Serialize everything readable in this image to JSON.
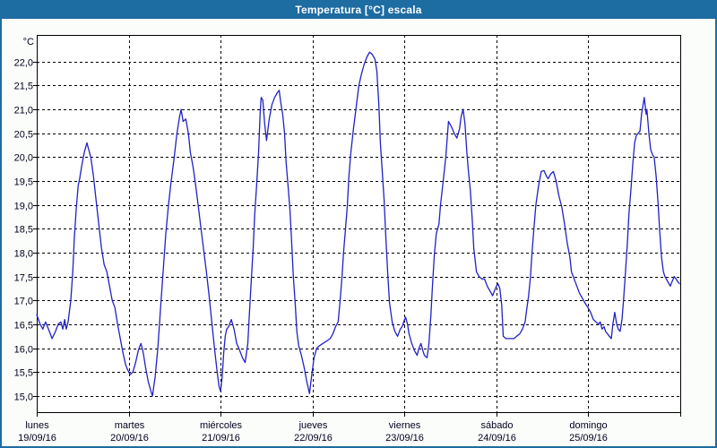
{
  "window": {
    "title": "Temperatura [°C] escala"
  },
  "colors": {
    "titlebar_bg": "#1d6ca2",
    "page_border": "#1d6ca2",
    "line": "#2121c8",
    "grid": "#000000",
    "label": "#00001e",
    "plot_bg": "#ffffff"
  },
  "chart_data": {
    "type": "line",
    "title": "Temperatura [°C] escala",
    "y_unit_label": "°C",
    "ylabel": "",
    "xlabel": "",
    "grid": "dashed",
    "legend": "none",
    "ylim": [
      14.66,
      22.56
    ],
    "x_hours_range": [
      0,
      168
    ],
    "hours_per_day": 24,
    "y_ticks": [
      {
        "value": 22.0,
        "label": "22,0"
      },
      {
        "value": 21.5,
        "label": "21,5"
      },
      {
        "value": 21.0,
        "label": "21,0"
      },
      {
        "value": 20.5,
        "label": "20,5"
      },
      {
        "value": 20.0,
        "label": "20,0"
      },
      {
        "value": 19.5,
        "label": "19,5"
      },
      {
        "value": 19.0,
        "label": "19,0"
      },
      {
        "value": 18.5,
        "label": "18,5"
      },
      {
        "value": 18.0,
        "label": "18,0"
      },
      {
        "value": 17.5,
        "label": "17,5"
      },
      {
        "value": 17.0,
        "label": "17,0"
      },
      {
        "value": 16.5,
        "label": "16,5"
      },
      {
        "value": 16.0,
        "label": "16,0"
      },
      {
        "value": 15.5,
        "label": "15,5"
      },
      {
        "value": 15.0,
        "label": "15,0"
      }
    ],
    "x_days": [
      {
        "name": "lunes",
        "date": "19/09/16"
      },
      {
        "name": "martes",
        "date": "20/09/16"
      },
      {
        "name": "miércoles",
        "date": "21/09/16"
      },
      {
        "name": "jueves",
        "date": "22/09/16"
      },
      {
        "name": "viernes",
        "date": "23/09/16"
      },
      {
        "name": "sábado",
        "date": "24/09/16"
      },
      {
        "name": "domingo",
        "date": "25/09/16"
      }
    ],
    "series": [
      {
        "name": "Temperatura [°C]",
        "color": "#2121c8",
        "points": [
          [
            0,
            16.7
          ],
          [
            0.9,
            16.5
          ],
          [
            1.6,
            16.4
          ],
          [
            2.3,
            16.55
          ],
          [
            3.3,
            16.35
          ],
          [
            4,
            16.2
          ],
          [
            4.9,
            16.35
          ],
          [
            5.6,
            16.5
          ],
          [
            6.3,
            16.55
          ],
          [
            6.8,
            16.4
          ],
          [
            7.3,
            16.6
          ],
          [
            7.7,
            16.4
          ],
          [
            8.2,
            16.55
          ],
          [
            8.9,
            17.0
          ],
          [
            9.4,
            17.6
          ],
          [
            9.8,
            18.3
          ],
          [
            10.3,
            18.9
          ],
          [
            10.8,
            19.4
          ],
          [
            11.2,
            19.55
          ],
          [
            11.7,
            19.8
          ],
          [
            12.4,
            20.1
          ],
          [
            13.1,
            20.3
          ],
          [
            13.6,
            20.15
          ],
          [
            14.1,
            20.0
          ],
          [
            14.8,
            19.6
          ],
          [
            15.5,
            19.1
          ],
          [
            16.2,
            18.6
          ],
          [
            16.9,
            18.1
          ],
          [
            17.6,
            17.75
          ],
          [
            18.3,
            17.6
          ],
          [
            19,
            17.3
          ],
          [
            19.7,
            17.0
          ],
          [
            20.4,
            16.85
          ],
          [
            21.1,
            16.5
          ],
          [
            21.8,
            16.2
          ],
          [
            22.5,
            15.9
          ],
          [
            23.2,
            15.65
          ],
          [
            23.7,
            15.55
          ],
          [
            24.4,
            15.45
          ],
          [
            25.1,
            15.5
          ],
          [
            25.8,
            15.7
          ],
          [
            26.5,
            15.95
          ],
          [
            27.2,
            16.1
          ],
          [
            27.7,
            15.95
          ],
          [
            28.4,
            15.6
          ],
          [
            29.1,
            15.3
          ],
          [
            29.8,
            15.1
          ],
          [
            30.2,
            15.0
          ],
          [
            30.9,
            15.4
          ],
          [
            31.6,
            16.0
          ],
          [
            32.3,
            16.8
          ],
          [
            33,
            17.6
          ],
          [
            33.7,
            18.4
          ],
          [
            34.4,
            19.0
          ],
          [
            35.1,
            19.5
          ],
          [
            35.9,
            20.0
          ],
          [
            36.6,
            20.5
          ],
          [
            37.3,
            20.85
          ],
          [
            37.7,
            21.0
          ],
          [
            38.2,
            20.75
          ],
          [
            38.9,
            20.8
          ],
          [
            39.6,
            20.5
          ],
          [
            40.1,
            20.1
          ],
          [
            40.8,
            19.8
          ],
          [
            41.5,
            19.4
          ],
          [
            42.2,
            18.95
          ],
          [
            42.9,
            18.5
          ],
          [
            43.6,
            18.05
          ],
          [
            44.3,
            17.6
          ],
          [
            45,
            17.1
          ],
          [
            45.7,
            16.55
          ],
          [
            46.4,
            16.0
          ],
          [
            47.1,
            15.5
          ],
          [
            47.6,
            15.2
          ],
          [
            48,
            15.1
          ],
          [
            48.4,
            15.4
          ],
          [
            48.8,
            15.9
          ],
          [
            49.2,
            16.25
          ],
          [
            49.6,
            16.4
          ],
          [
            50.1,
            16.45
          ],
          [
            50.8,
            16.6
          ],
          [
            51.5,
            16.4
          ],
          [
            52.2,
            16.1
          ],
          [
            53,
            15.95
          ],
          [
            53.7,
            15.8
          ],
          [
            54.4,
            15.7
          ],
          [
            55.1,
            16.1
          ],
          [
            55.5,
            16.7
          ],
          [
            56,
            17.4
          ],
          [
            56.5,
            18.1
          ],
          [
            56.9,
            18.8
          ],
          [
            57.4,
            19.4
          ],
          [
            57.9,
            20.1
          ],
          [
            58.3,
            20.9
          ],
          [
            58.6,
            21.25
          ],
          [
            59,
            21.2
          ],
          [
            59.5,
            20.7
          ],
          [
            60,
            20.35
          ],
          [
            60.7,
            20.8
          ],
          [
            61.4,
            21.1
          ],
          [
            62.1,
            21.25
          ],
          [
            62.8,
            21.35
          ],
          [
            63.3,
            21.4
          ],
          [
            63.7,
            21.15
          ],
          [
            64.2,
            20.9
          ],
          [
            64.7,
            20.5
          ],
          [
            65.1,
            19.9
          ],
          [
            65.6,
            19.4
          ],
          [
            66.1,
            18.9
          ],
          [
            66.5,
            18.3
          ],
          [
            67,
            17.5
          ],
          [
            67.5,
            16.9
          ],
          [
            67.9,
            16.35
          ],
          [
            68.4,
            16.05
          ],
          [
            69.1,
            15.85
          ],
          [
            69.8,
            15.6
          ],
          [
            70.5,
            15.3
          ],
          [
            71.2,
            15.05
          ],
          [
            71.8,
            15.45
          ],
          [
            72.4,
            15.8
          ],
          [
            73.1,
            16.0
          ],
          [
            73.8,
            16.05
          ],
          [
            74.7,
            16.1
          ],
          [
            75.7,
            16.15
          ],
          [
            76.6,
            16.2
          ],
          [
            77.3,
            16.3
          ],
          [
            78,
            16.45
          ],
          [
            78.7,
            16.55
          ],
          [
            79.2,
            17.0
          ],
          [
            79.7,
            17.5
          ],
          [
            80.1,
            18.0
          ],
          [
            80.6,
            18.5
          ],
          [
            81.1,
            19.0
          ],
          [
            81.5,
            19.6
          ],
          [
            82,
            20.1
          ],
          [
            82.7,
            20.6
          ],
          [
            83.4,
            21.05
          ],
          [
            84.1,
            21.5
          ],
          [
            84.8,
            21.75
          ],
          [
            85.5,
            21.95
          ],
          [
            86.2,
            22.1
          ],
          [
            86.9,
            22.2
          ],
          [
            87.6,
            22.15
          ],
          [
            88.3,
            22.05
          ],
          [
            88.8,
            21.8
          ],
          [
            89.3,
            21.1
          ],
          [
            89.7,
            20.3
          ],
          [
            90.2,
            19.7
          ],
          [
            90.7,
            19.1
          ],
          [
            91.1,
            18.4
          ],
          [
            91.6,
            17.6
          ],
          [
            92.1,
            16.95
          ],
          [
            92.8,
            16.55
          ],
          [
            93.5,
            16.35
          ],
          [
            94.2,
            16.25
          ],
          [
            94.9,
            16.4
          ],
          [
            95.4,
            16.45
          ],
          [
            95.8,
            16.55
          ],
          [
            96.3,
            16.65
          ],
          [
            96.8,
            16.5
          ],
          [
            97.2,
            16.3
          ],
          [
            97.9,
            16.1
          ],
          [
            98.6,
            15.95
          ],
          [
            99.3,
            15.85
          ],
          [
            99.8,
            16.0
          ],
          [
            100.3,
            16.1
          ],
          [
            100.8,
            15.95
          ],
          [
            101.2,
            15.85
          ],
          [
            101.9,
            15.8
          ],
          [
            102.4,
            16.1
          ],
          [
            102.9,
            16.7
          ],
          [
            103.3,
            17.3
          ],
          [
            103.8,
            17.95
          ],
          [
            104.3,
            18.4
          ],
          [
            105,
            18.6
          ],
          [
            105.4,
            19.0
          ],
          [
            106.1,
            19.5
          ],
          [
            106.8,
            20.0
          ],
          [
            107.5,
            20.75
          ],
          [
            108.2,
            20.65
          ],
          [
            109,
            20.5
          ],
          [
            109.7,
            20.4
          ],
          [
            110.4,
            20.6
          ],
          [
            110.8,
            20.85
          ],
          [
            111.3,
            21.0
          ],
          [
            111.8,
            20.7
          ],
          [
            112.3,
            20.1
          ],
          [
            112.7,
            19.7
          ],
          [
            113.2,
            19.3
          ],
          [
            113.7,
            18.7
          ],
          [
            114.1,
            18.1
          ],
          [
            114.8,
            17.6
          ],
          [
            115.5,
            17.5
          ],
          [
            116.2,
            17.45
          ],
          [
            116.9,
            17.45
          ],
          [
            117.6,
            17.3
          ],
          [
            118.3,
            17.2
          ],
          [
            119,
            17.1
          ],
          [
            119.5,
            17.2
          ],
          [
            120,
            17.3
          ],
          [
            120.4,
            17.35
          ],
          [
            120.9,
            17.25
          ],
          [
            121.4,
            16.9
          ],
          [
            121.8,
            16.25
          ],
          [
            122.5,
            16.2
          ],
          [
            123.2,
            16.2
          ],
          [
            123.9,
            16.2
          ],
          [
            124.6,
            16.2
          ],
          [
            125.3,
            16.25
          ],
          [
            126.1,
            16.3
          ],
          [
            126.8,
            16.4
          ],
          [
            127.5,
            16.55
          ],
          [
            127.9,
            16.8
          ],
          [
            128.4,
            17.1
          ],
          [
            128.9,
            17.5
          ],
          [
            129.3,
            18.0
          ],
          [
            129.8,
            18.5
          ],
          [
            130.3,
            19.0
          ],
          [
            131,
            19.4
          ],
          [
            131.7,
            19.7
          ],
          [
            132.4,
            19.72
          ],
          [
            133.1,
            19.6
          ],
          [
            133.5,
            19.55
          ],
          [
            134.2,
            19.65
          ],
          [
            134.9,
            19.7
          ],
          [
            135.6,
            19.5
          ],
          [
            136.3,
            19.2
          ],
          [
            137.1,
            18.95
          ],
          [
            137.8,
            18.6
          ],
          [
            138.5,
            18.2
          ],
          [
            139.2,
            17.9
          ],
          [
            139.6,
            17.6
          ],
          [
            140.3,
            17.45
          ],
          [
            141,
            17.3
          ],
          [
            141.7,
            17.15
          ],
          [
            142.4,
            17.05
          ],
          [
            143.1,
            16.95
          ],
          [
            143.9,
            16.85
          ],
          [
            144.6,
            16.75
          ],
          [
            145.3,
            16.6
          ],
          [
            146,
            16.55
          ],
          [
            146.7,
            16.5
          ],
          [
            147.1,
            16.55
          ],
          [
            147.6,
            16.4
          ],
          [
            148.1,
            16.45
          ],
          [
            148.5,
            16.35
          ],
          [
            149,
            16.3
          ],
          [
            149.5,
            16.25
          ],
          [
            150,
            16.2
          ],
          [
            150.4,
            16.5
          ],
          [
            150.9,
            16.75
          ],
          [
            151.4,
            16.5
          ],
          [
            151.8,
            16.4
          ],
          [
            152.3,
            16.35
          ],
          [
            152.8,
            16.6
          ],
          [
            153.2,
            17.0
          ],
          [
            153.7,
            17.6
          ],
          [
            154.2,
            18.2
          ],
          [
            154.6,
            18.8
          ],
          [
            155.1,
            19.3
          ],
          [
            155.6,
            19.85
          ],
          [
            156.1,
            20.3
          ],
          [
            156.5,
            20.45
          ],
          [
            157,
            20.5
          ],
          [
            157.5,
            20.55
          ],
          [
            157.9,
            20.9
          ],
          [
            158.4,
            21.15
          ],
          [
            158.6,
            21.25
          ],
          [
            159.1,
            20.9
          ],
          [
            159.3,
            21.0
          ],
          [
            159.8,
            20.5
          ],
          [
            160.3,
            20.15
          ],
          [
            160.8,
            20.05
          ],
          [
            161.2,
            20.0
          ],
          [
            161.7,
            19.6
          ],
          [
            162.2,
            19.05
          ],
          [
            162.6,
            18.5
          ],
          [
            163.1,
            17.9
          ],
          [
            163.6,
            17.6
          ],
          [
            164,
            17.5
          ],
          [
            164.7,
            17.4
          ],
          [
            165.4,
            17.3
          ],
          [
            165.9,
            17.4
          ],
          [
            166.4,
            17.5
          ],
          [
            166.9,
            17.45
          ],
          [
            167.3,
            17.4
          ],
          [
            167.8,
            17.35
          ]
        ]
      }
    ]
  }
}
